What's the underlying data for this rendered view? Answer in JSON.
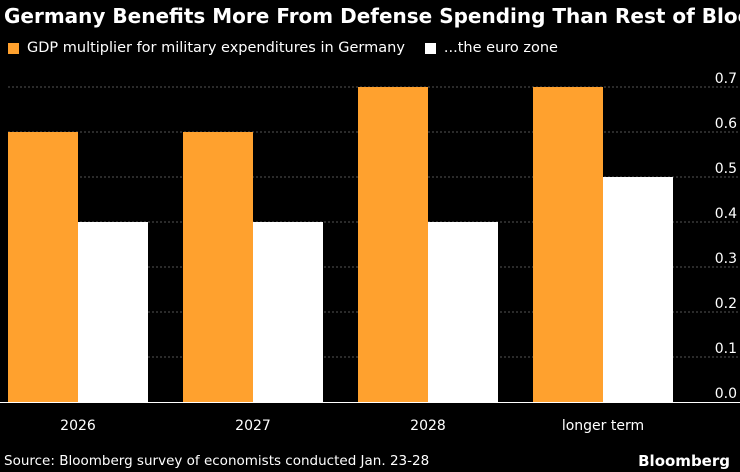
{
  "chart_data": {
    "type": "bar",
    "title": "Germany Benefits More From Defense Spending Than Rest of Bloc",
    "categories": [
      "2026",
      "2027",
      "2028",
      "longer term"
    ],
    "series": [
      {
        "name": "GDP multiplier for military expenditures in Germany",
        "color": "#FFA12E",
        "values": [
          0.6,
          0.6,
          0.7,
          0.7
        ]
      },
      {
        "name": "...the euro zone",
        "color": "#FFFFFF",
        "values": [
          0.4,
          0.4,
          0.4,
          0.5
        ]
      }
    ],
    "ylim": [
      0,
      0.7
    ],
    "yticks": [
      "0.0",
      "0.1",
      "0.2",
      "0.3",
      "0.4",
      "0.5",
      "0.6",
      "0.7"
    ],
    "xlabel": "",
    "ylabel": "",
    "grid": true
  },
  "footer": {
    "source": "Source: Bloomberg survey of economists conducted Jan. 23-28",
    "brand": "Bloomberg"
  }
}
